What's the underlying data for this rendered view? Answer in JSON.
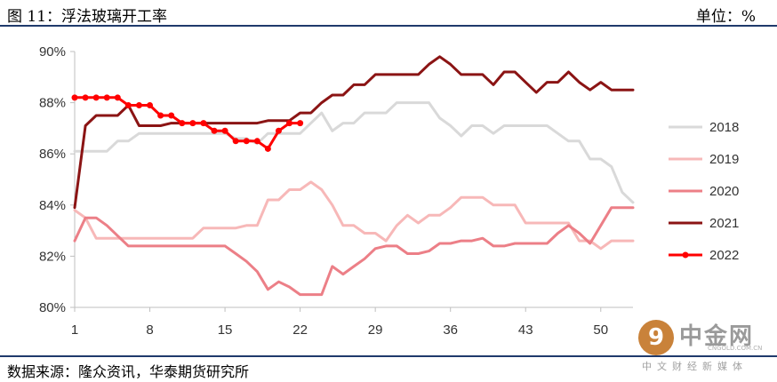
{
  "header": {
    "title": "图 11：浮法玻璃开工率",
    "unit": "单位：%"
  },
  "footer": {
    "source": "数据来源：隆众资讯，华泰期货研究所"
  },
  "watermark": {
    "logo_name": "中金网",
    "url": "CNGOLD.COM.CN",
    "subtitle": "中文财经新媒体"
  },
  "chart_data": {
    "type": "line",
    "x_ticks": [
      1,
      8,
      15,
      22,
      29,
      36,
      43,
      50
    ],
    "xlim": [
      1,
      53
    ],
    "ylim": [
      80,
      90
    ],
    "y_ticks": [
      80,
      82,
      84,
      86,
      88,
      90
    ],
    "y_tick_labels": [
      "80%",
      "82%",
      "84%",
      "86%",
      "88%",
      "90%"
    ],
    "legend_position": "right",
    "grid": false,
    "series": [
      {
        "name": "2018",
        "color": "#d9d9d9",
        "markers": false,
        "values": [
          86.1,
          86.1,
          86.1,
          86.1,
          86.5,
          86.5,
          86.8,
          86.8,
          86.8,
          86.8,
          86.8,
          86.8,
          86.8,
          86.8,
          86.8,
          86.6,
          86.6,
          86.4,
          86.8,
          86.8,
          86.8,
          86.8,
          87.2,
          87.6,
          86.9,
          87.2,
          87.2,
          87.6,
          87.6,
          87.6,
          88.0,
          88.0,
          88.0,
          88.0,
          87.4,
          87.1,
          86.7,
          87.1,
          87.1,
          86.8,
          87.1,
          87.1,
          87.1,
          87.1,
          87.1,
          86.8,
          86.5,
          86.5,
          85.8,
          85.8,
          85.5,
          84.5,
          84.1
        ]
      },
      {
        "name": "2019",
        "color": "#f7b8b8",
        "markers": false,
        "values": [
          83.8,
          83.5,
          82.7,
          82.7,
          82.7,
          82.7,
          82.7,
          82.7,
          82.7,
          82.7,
          82.7,
          82.7,
          83.1,
          83.1,
          83.1,
          83.1,
          83.2,
          83.2,
          84.2,
          84.2,
          84.6,
          84.6,
          84.9,
          84.6,
          84.0,
          83.2,
          83.2,
          82.9,
          82.9,
          82.6,
          83.2,
          83.6,
          83.3,
          83.6,
          83.6,
          83.9,
          84.3,
          84.3,
          84.3,
          84.0,
          84.0,
          84.0,
          83.3,
          83.3,
          83.3,
          83.3,
          83.3,
          82.6,
          82.6,
          82.3,
          82.6,
          82.6,
          82.6
        ]
      },
      {
        "name": "2020",
        "color": "#ec7f87",
        "markers": false,
        "values": [
          82.6,
          83.5,
          83.5,
          83.2,
          82.8,
          82.4,
          82.4,
          82.4,
          82.4,
          82.4,
          82.4,
          82.4,
          82.4,
          82.4,
          82.4,
          82.1,
          81.8,
          81.4,
          80.7,
          81.0,
          80.8,
          80.5,
          80.5,
          80.5,
          81.6,
          81.3,
          81.6,
          81.9,
          82.3,
          82.4,
          82.4,
          82.1,
          82.1,
          82.2,
          82.5,
          82.5,
          82.6,
          82.6,
          82.7,
          82.4,
          82.4,
          82.5,
          82.5,
          82.5,
          82.5,
          82.9,
          83.2,
          82.9,
          82.5,
          83.2,
          83.9,
          83.9,
          83.9
        ]
      },
      {
        "name": "2021",
        "color": "#8b1414",
        "markers": false,
        "values": [
          83.9,
          87.1,
          87.5,
          87.5,
          87.5,
          87.9,
          87.1,
          87.1,
          87.1,
          87.2,
          87.2,
          87.2,
          87.2,
          87.2,
          87.2,
          87.2,
          87.2,
          87.2,
          87.3,
          87.3,
          87.3,
          87.6,
          87.6,
          88.0,
          88.3,
          88.3,
          88.7,
          88.7,
          89.1,
          89.1,
          89.1,
          89.1,
          89.1,
          89.5,
          89.8,
          89.5,
          89.1,
          89.1,
          89.1,
          88.7,
          89.2,
          89.2,
          88.8,
          88.4,
          88.8,
          88.8,
          89.2,
          88.8,
          88.5,
          88.8,
          88.5,
          88.5,
          88.5
        ]
      },
      {
        "name": "2022",
        "color": "#ff0000",
        "markers": true,
        "values": [
          88.2,
          88.2,
          88.2,
          88.2,
          88.2,
          87.9,
          87.9,
          87.9,
          87.5,
          87.5,
          87.2,
          87.2,
          87.2,
          86.9,
          86.9,
          86.5,
          86.5,
          86.5,
          86.2,
          86.9,
          87.2,
          87.2
        ]
      }
    ]
  }
}
